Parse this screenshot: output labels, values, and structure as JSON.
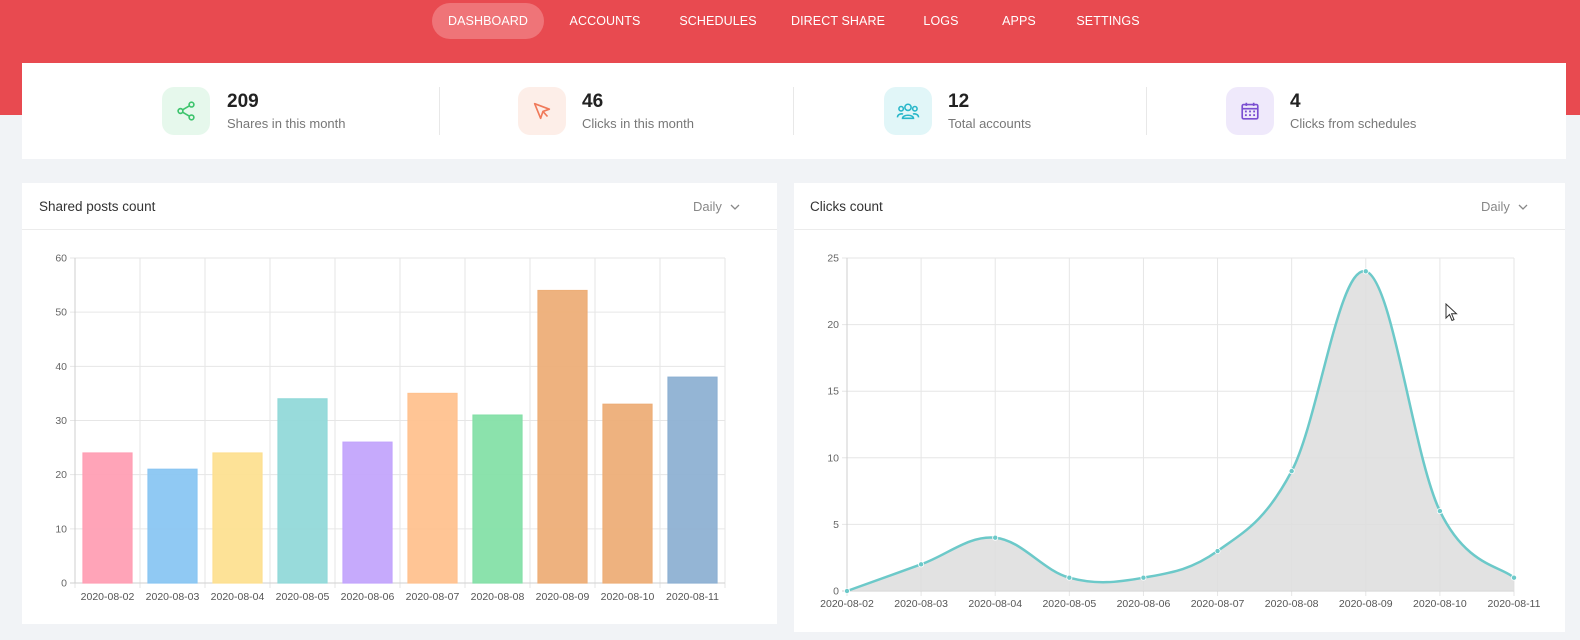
{
  "nav": {
    "items": [
      {
        "label": "DASHBOARD",
        "active": true
      },
      {
        "label": "ACCOUNTS",
        "active": false
      },
      {
        "label": "SCHEDULES",
        "active": false
      },
      {
        "label": "DIRECT SHARE",
        "active": false
      },
      {
        "label": "LOGS",
        "active": false
      },
      {
        "label": "APPS",
        "active": false
      },
      {
        "label": "SETTINGS",
        "active": false
      }
    ]
  },
  "stats": [
    {
      "value": "209",
      "label": "Shares in this month",
      "icon": "share-icon",
      "color": "#3ec46d",
      "bg": "#e6f8ec"
    },
    {
      "value": "46",
      "label": "Clicks in this month",
      "icon": "cursor-click-icon",
      "color": "#f07a5a",
      "bg": "#fdeee8"
    },
    {
      "value": "12",
      "label": "Total accounts",
      "icon": "users-icon",
      "color": "#27b6c9",
      "bg": "#e1f6f8"
    },
    {
      "value": "4",
      "label": "Clicks from schedules",
      "icon": "calendar-icon",
      "color": "#7b4fd1",
      "bg": "#efe9fb"
    }
  ],
  "colors": {
    "brand": "#e84a50",
    "nav_active": "#ef7478",
    "line": "#6cc9c9",
    "area": "#dddddd"
  },
  "shares_card": {
    "title": "Shared posts count",
    "period": "Daily"
  },
  "clicks_card": {
    "title": "Clicks count",
    "period": "Daily"
  },
  "chart_data": [
    {
      "type": "bar",
      "title": "Shared posts count",
      "categories": [
        "2020-08-02",
        "2020-08-03",
        "2020-08-04",
        "2020-08-05",
        "2020-08-06",
        "2020-08-07",
        "2020-08-08",
        "2020-08-09",
        "2020-08-10",
        "2020-08-11"
      ],
      "values": [
        24,
        21,
        24,
        34,
        26,
        35,
        31,
        54,
        33,
        38
      ],
      "colors": [
        "#ff9fb4",
        "#8ac6f2",
        "#fde091",
        "#92d9d9",
        "#c3a5fc",
        "#ffc28f",
        "#85e0a8",
        "#edae78",
        "#edae78",
        "#8eb1d3"
      ],
      "ylim": [
        0,
        60
      ],
      "yticks": [
        0,
        10,
        20,
        30,
        40,
        50,
        60
      ],
      "grid": true
    },
    {
      "type": "area",
      "title": "Clicks count",
      "categories": [
        "2020-08-02",
        "2020-08-03",
        "2020-08-04",
        "2020-08-05",
        "2020-08-06",
        "2020-08-07",
        "2020-08-08",
        "2020-08-09",
        "2020-08-10",
        "2020-08-11"
      ],
      "values": [
        0,
        2,
        4,
        1,
        1,
        3,
        9,
        24,
        6,
        1
      ],
      "ylim": [
        0,
        25
      ],
      "yticks": [
        0,
        5,
        10,
        15,
        20,
        25
      ],
      "grid": true
    }
  ]
}
